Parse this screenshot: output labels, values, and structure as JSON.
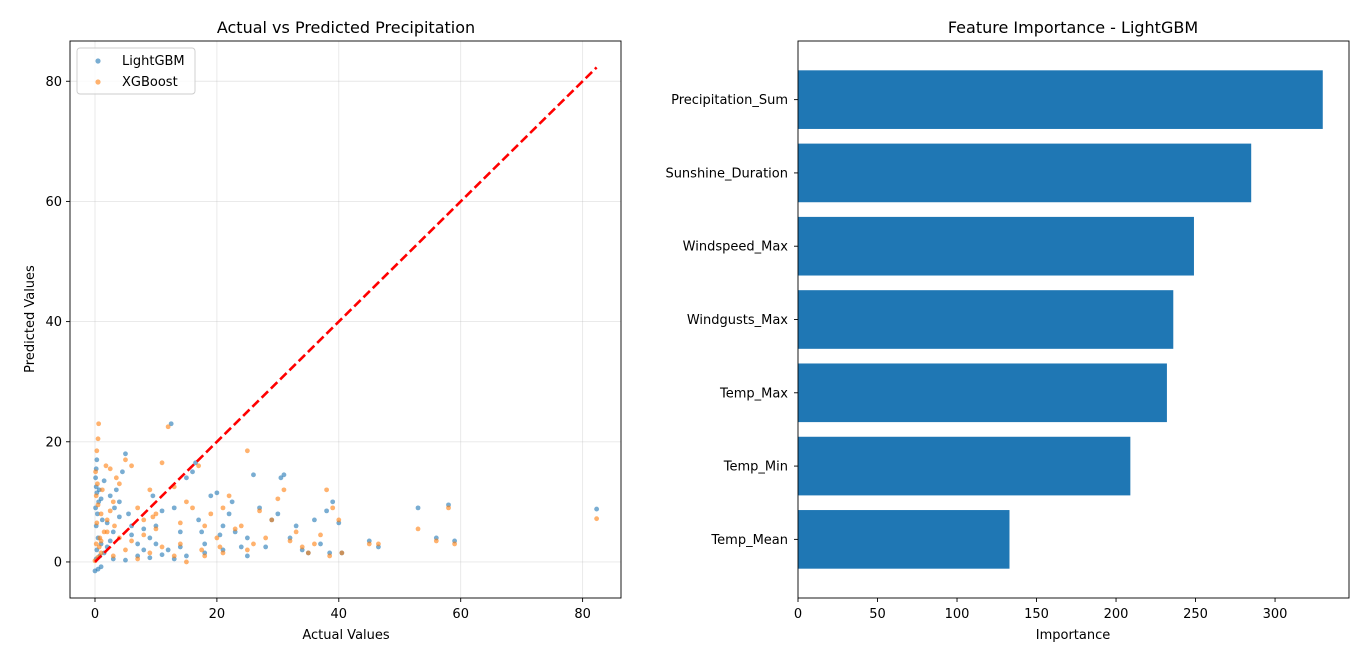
{
  "chart_data": [
    {
      "type": "scatter",
      "title": "Actual vs Predicted Precipitation",
      "xlabel": "Actual Values",
      "ylabel": "Predicted Values",
      "xlim": [
        -4.1,
        86.3
      ],
      "ylim": [
        -6.0,
        86.7
      ],
      "xticks": [
        0,
        20,
        40,
        60,
        80
      ],
      "yticks": [
        0,
        20,
        40,
        60,
        80
      ],
      "grid": true,
      "legend_position": "top-left",
      "reference_line": {
        "style": "dashed",
        "color": "#ff0000",
        "from": [
          0,
          0
        ],
        "to": [
          82.3,
          82.3
        ]
      },
      "series": [
        {
          "name": "LightGBM",
          "color": "#1f77b4",
          "points": [
            [
              0,
              -1.5
            ],
            [
              0.5,
              -1.2
            ],
            [
              1,
              -0.8
            ],
            [
              0.2,
              0.5
            ],
            [
              0.8,
              1
            ],
            [
              1.5,
              1.5
            ],
            [
              0.3,
              2
            ],
            [
              2,
              2.5
            ],
            [
              1,
              3
            ],
            [
              0.5,
              4
            ],
            [
              2.5,
              3.5
            ],
            [
              3,
              5
            ],
            [
              0.2,
              6
            ],
            [
              1.2,
              7
            ],
            [
              0.4,
              8
            ],
            [
              0.1,
              9
            ],
            [
              0.6,
              10
            ],
            [
              0.3,
              11.5
            ],
            [
              0.2,
              12.5
            ],
            [
              0.1,
              14
            ],
            [
              0.2,
              15.5
            ],
            [
              0.3,
              17
            ],
            [
              1.5,
              13.5
            ],
            [
              2.5,
              11
            ],
            [
              3.5,
              12
            ],
            [
              4,
              10
            ],
            [
              4.5,
              15
            ],
            [
              5,
              18
            ],
            [
              5.5,
              8
            ],
            [
              6,
              6
            ],
            [
              7,
              3
            ],
            [
              8,
              2
            ],
            [
              9,
              4
            ],
            [
              10,
              6
            ],
            [
              11,
              8.5
            ],
            [
              12,
              2
            ],
            [
              12.5,
              23
            ],
            [
              13,
              9
            ],
            [
              14,
              5
            ],
            [
              15,
              14
            ],
            [
              16,
              15
            ],
            [
              16.5,
              16.5
            ],
            [
              17,
              7
            ],
            [
              18,
              3
            ],
            [
              19,
              11
            ],
            [
              20,
              11.5
            ],
            [
              21,
              6
            ],
            [
              22,
              8
            ],
            [
              22.5,
              10
            ],
            [
              23,
              5
            ],
            [
              24,
              2.5
            ],
            [
              25,
              4
            ],
            [
              26,
              14.5
            ],
            [
              27,
              9
            ],
            [
              28,
              2.5
            ],
            [
              29,
              7
            ],
            [
              30,
              8
            ],
            [
              30.5,
              14
            ],
            [
              31,
              14.5
            ],
            [
              32,
              4
            ],
            [
              33,
              6
            ],
            [
              34,
              2
            ],
            [
              35,
              1.5
            ],
            [
              36,
              7
            ],
            [
              37,
              3
            ],
            [
              38,
              8.5
            ],
            [
              38.5,
              1.5
            ],
            [
              39,
              10
            ],
            [
              40,
              6.5
            ],
            [
              40.5,
              1.5
            ],
            [
              45,
              3.5
            ],
            [
              46.5,
              2.5
            ],
            [
              53,
              9
            ],
            [
              56,
              4
            ],
            [
              58,
              9.5
            ],
            [
              59,
              3.5
            ],
            [
              82.3,
              8.8
            ],
            [
              3,
              0.5
            ],
            [
              5,
              0.3
            ],
            [
              7,
              1
            ],
            [
              9,
              0.7
            ],
            [
              11,
              1.2
            ],
            [
              13,
              0.5
            ],
            [
              15,
              1
            ],
            [
              18,
              1.5
            ],
            [
              21,
              2
            ],
            [
              25,
              1
            ],
            [
              6,
              4.5
            ],
            [
              8,
              5.5
            ],
            [
              10,
              3
            ],
            [
              14,
              2.5
            ],
            [
              2,
              6.5
            ],
            [
              4,
              7.5
            ],
            [
              1,
              10.5
            ],
            [
              0.7,
              12
            ],
            [
              3.2,
              9
            ],
            [
              9.5,
              11
            ],
            [
              17.5,
              5
            ],
            [
              20.5,
              4.5
            ]
          ]
        },
        {
          "name": "XGBoost",
          "color": "#ff7f0e",
          "points": [
            [
              0,
              0.2
            ],
            [
              0.5,
              0.8
            ],
            [
              1,
              1.5
            ],
            [
              0.2,
              3
            ],
            [
              0.8,
              4
            ],
            [
              1.5,
              5
            ],
            [
              0.3,
              6.5
            ],
            [
              2,
              7
            ],
            [
              1,
              8
            ],
            [
              0.5,
              9.5
            ],
            [
              2.5,
              8.5
            ],
            [
              3,
              10
            ],
            [
              0.2,
              11
            ],
            [
              1.2,
              12
            ],
            [
              0.4,
              13
            ],
            [
              0.1,
              15
            ],
            [
              0.3,
              18.5
            ],
            [
              0.5,
              20.5
            ],
            [
              0.6,
              23
            ],
            [
              1.8,
              16
            ],
            [
              2.5,
              15.5
            ],
            [
              3.5,
              14
            ],
            [
              4,
              13
            ],
            [
              5,
              17
            ],
            [
              6,
              16
            ],
            [
              7,
              9
            ],
            [
              8,
              7
            ],
            [
              9,
              12
            ],
            [
              10,
              8
            ],
            [
              11,
              16.5
            ],
            [
              12,
              22.5
            ],
            [
              13,
              12.5
            ],
            [
              14,
              3
            ],
            [
              15,
              10
            ],
            [
              16,
              9
            ],
            [
              17,
              16
            ],
            [
              18,
              6
            ],
            [
              19,
              8
            ],
            [
              20,
              4
            ],
            [
              21,
              9
            ],
            [
              22,
              11
            ],
            [
              23,
              5.5
            ],
            [
              24,
              6
            ],
            [
              25,
              18.5
            ],
            [
              26,
              3
            ],
            [
              27,
              8.5
            ],
            [
              28,
              4
            ],
            [
              29,
              7
            ],
            [
              30,
              10.5
            ],
            [
              31,
              12
            ],
            [
              32,
              3.5
            ],
            [
              33,
              5
            ],
            [
              34,
              2.5
            ],
            [
              35,
              1.5
            ],
            [
              36,
              3
            ],
            [
              37,
              4.5
            ],
            [
              38,
              12
            ],
            [
              38.5,
              1
            ],
            [
              39,
              9
            ],
            [
              40,
              7
            ],
            [
              40.5,
              1.5
            ],
            [
              45,
              3
            ],
            [
              46.5,
              3
            ],
            [
              53,
              5.5
            ],
            [
              56,
              3.5
            ],
            [
              58,
              9
            ],
            [
              59,
              3
            ],
            [
              82.3,
              7.2
            ],
            [
              3,
              1
            ],
            [
              5,
              2
            ],
            [
              7,
              0.5
            ],
            [
              9,
              1.5
            ],
            [
              11,
              2.5
            ],
            [
              13,
              1
            ],
            [
              15,
              0
            ],
            [
              18,
              1
            ],
            [
              21,
              1.5
            ],
            [
              25,
              2
            ],
            [
              6,
              3.5
            ],
            [
              8,
              4.5
            ],
            [
              10,
              5.5
            ],
            [
              14,
              6.5
            ],
            [
              2,
              5
            ],
            [
              4,
              4
            ],
            [
              1,
              3.5
            ],
            [
              0.7,
              2.5
            ],
            [
              3.2,
              6
            ],
            [
              9.5,
              7.5
            ],
            [
              17.5,
              2
            ],
            [
              20.5,
              2.5
            ]
          ]
        }
      ]
    },
    {
      "type": "bar",
      "orientation": "horizontal",
      "title": "Feature Importance - LightGBM",
      "xlabel": "Importance",
      "ylabel": "",
      "xlim": [
        0,
        346.5
      ],
      "xticks": [
        0,
        50,
        100,
        150,
        200,
        250,
        300
      ],
      "grid": false,
      "color": "#1f77b4",
      "categories": [
        "Precipitation_Sum",
        "Sunshine_Duration",
        "Windspeed_Max",
        "Windgusts_Max",
        "Temp_Max",
        "Temp_Min",
        "Temp_Mean"
      ],
      "values": [
        330,
        285,
        249,
        236,
        232,
        209,
        133
      ]
    }
  ]
}
